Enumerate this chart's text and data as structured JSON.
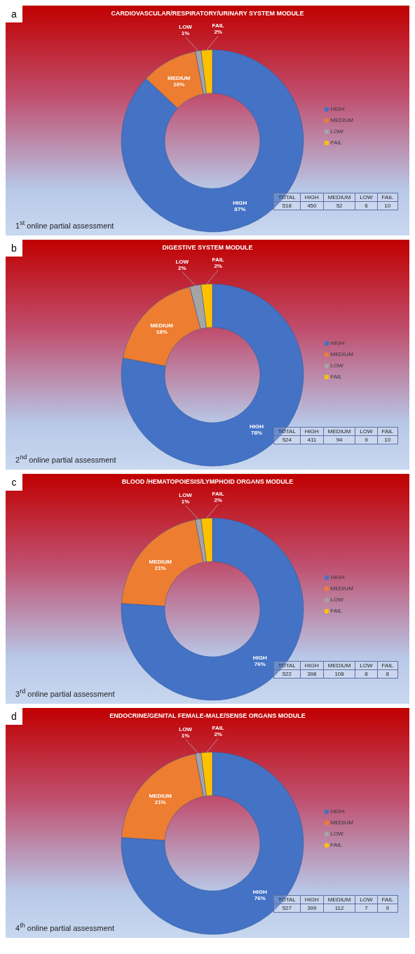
{
  "chart_data": [
    {
      "type": "donut",
      "title": "CARDIOVASCULAR/RESPIRATORY/URINARY SYSTEM MODULE",
      "categories": [
        "HIGH",
        "MEDIUM",
        "LOW",
        "FAIL"
      ],
      "values": [
        87,
        10,
        1,
        2
      ],
      "colors": [
        "#4472c4",
        "#ed7d31",
        "#a5a5a5",
        "#ffc000"
      ],
      "value_labels": [
        "87%",
        "10%",
        "1%",
        "2%"
      ],
      "legend": "right",
      "annotations": [
        "a",
        "1$^{st}$ online partial assessment",
        "TOTAL",
        "HIGH",
        "MEDIUM",
        "LOW",
        "FAIL",
        "518",
        "450",
        "52",
        "6",
        "10"
      ]
    },
    {
      "type": "donut",
      "title": "DIGESTIVE SYSTEM MODULE",
      "categories": [
        "HIGH",
        "MEDIUM",
        "LOW",
        "FAIL"
      ],
      "values": [
        78,
        18,
        2,
        2
      ],
      "colors": [
        "#4472c4",
        "#ed7d31",
        "#a5a5a5",
        "#ffc000"
      ],
      "value_labels": [
        "78%",
        "18%",
        "2%",
        "2%"
      ],
      "legend": "right",
      "annotations": [
        "b",
        "2$^{nd}$  online partial assessment",
        "TOTAL",
        "HIGH",
        "MEDIUM",
        "LOW",
        "FAIL",
        "524",
        "411",
        "94",
        "9",
        "10"
      ]
    },
    {
      "type": "donut",
      "title": "BLOOD /HEMATOPOIESIS/LYMPHOID ORGANS MODULE",
      "categories": [
        "HIGH",
        "MEDIUM",
        "LOW",
        "FAIL"
      ],
      "values": [
        76,
        21,
        1,
        2
      ],
      "colors": [
        "#4472c4",
        "#ed7d31",
        "#a5a5a5",
        "#ffc000"
      ],
      "value_labels": [
        "76%",
        "21%",
        "1%",
        "2%"
      ],
      "legend": "right",
      "annotations": [
        "c",
        "3$^{rd}$  online partial assessment",
        "TOTAL",
        "HIGH",
        "MEDIUM",
        "LOW",
        "FAIL",
        "522",
        "398",
        "108",
        "8",
        "8"
      ]
    },
    {
      "type": "donut",
      "title": "ENDOCRINE/GENITAL FEMALE-MALE/SENSE ORGANS MODULE",
      "categories": [
        "HIGH",
        "MEDIUM",
        "LOW",
        "FAIL"
      ],
      "values": [
        76,
        21,
        1,
        2
      ],
      "colors": [
        "#4472c4",
        "#ed7d31",
        "#a5a5a5",
        "#ffc000"
      ],
      "value_labels": [
        "76%",
        "21%",
        "1%",
        "2%"
      ],
      "legend": "right",
      "annotations": [
        "d",
        "4$^{th}$ online partial assessment",
        "TOTAL",
        "HIGH",
        "MEDIUM",
        "LOW",
        "FAIL",
        "527",
        "399",
        "112",
        "7",
        "9"
      ]
    }
  ]
}
